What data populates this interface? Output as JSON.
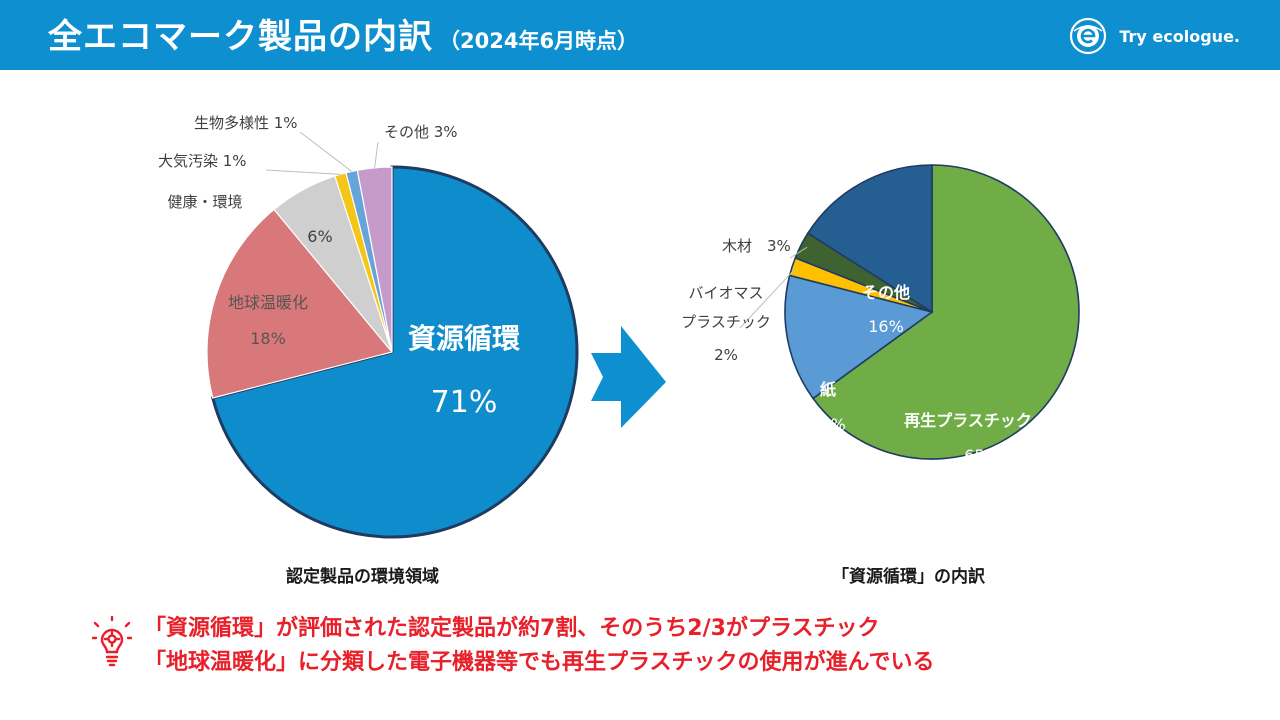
{
  "header": {
    "title": "全エコマーク製品の内訳",
    "subtitle": "（2024年6月時点）",
    "brand": "Try ecologue.",
    "brand_icon": "ecomark-logo-icon"
  },
  "colors": {
    "header_bg": "#0e8fd0",
    "arrow": "#0e8fd0",
    "takeaway_text": "#e8202a"
  },
  "chart_data": [
    {
      "type": "pie",
      "title": "認定製品の環境領域",
      "start": "12 o'clock, clockwise",
      "slices": [
        {
          "label": "資源循環",
          "value": 71,
          "value_label": "71%",
          "color": "#0f8ccc"
        },
        {
          "label": "地球温暖化",
          "value": 18,
          "value_label": "18%",
          "color": "#d9787a"
        },
        {
          "label": "健康・環境",
          "value": 6,
          "value_label": "6%",
          "color": "#cfcfcf"
        },
        {
          "label": "大気汚染",
          "value": 1,
          "value_label": "1%",
          "color": "#f5c518"
        },
        {
          "label": "生物多様性",
          "value": 1,
          "value_label": "1%",
          "color": "#67a4d8"
        },
        {
          "label": "その他",
          "value": 3,
          "value_label": "3%",
          "color": "#c69acb"
        }
      ]
    },
    {
      "type": "pie",
      "title": "「資源循環」の内訳",
      "start": "12 o'clock, clockwise",
      "slices": [
        {
          "label": "再生プラスチック",
          "value": 65,
          "value_label": "65%",
          "color": "#70ad47"
        },
        {
          "label": "紙",
          "value": 14,
          "value_label": "14%",
          "color": "#5b9bd5"
        },
        {
          "label": "バイオマス\nプラスチック",
          "value": 2,
          "value_label": "2%",
          "color": "#ffc000"
        },
        {
          "label": "木材",
          "value": 3,
          "value_label": "3%",
          "color": "#3e6331"
        },
        {
          "label": "その他",
          "value": 16,
          "value_label": "16%",
          "color": "#255e91"
        }
      ]
    }
  ],
  "takeaway": {
    "icon": "lightbulb-gear-icon",
    "line1": "「資源循環」が評価された認定製品が約7割、そのうち2/3がプラスチック",
    "line2": "「地球温暖化」に分類した電子機器等でも再生プラスチックの使用が進んでいる"
  }
}
